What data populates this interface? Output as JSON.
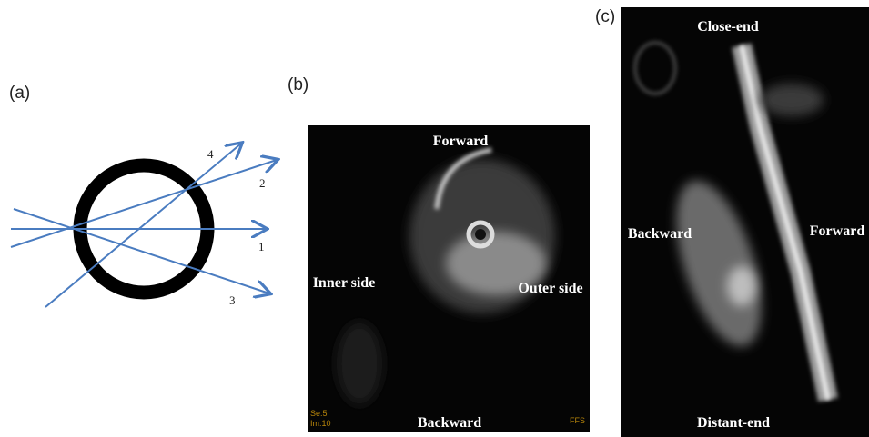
{
  "panels": [
    {
      "label": "(a)",
      "rays": [
        "4",
        "2",
        "1",
        "3"
      ]
    },
    {
      "label": "(b)",
      "annotations": {
        "top": "Forward",
        "left": "Inner side",
        "right": "Outer side",
        "bottom": "Backward"
      },
      "overlay": [
        "Se:5",
        "Im:10",
        "FFS"
      ]
    },
    {
      "label": "(c)",
      "annotations": {
        "top": "Close-end",
        "left": "Backward",
        "right": "Forward",
        "bottom": "Distant-end"
      }
    }
  ]
}
